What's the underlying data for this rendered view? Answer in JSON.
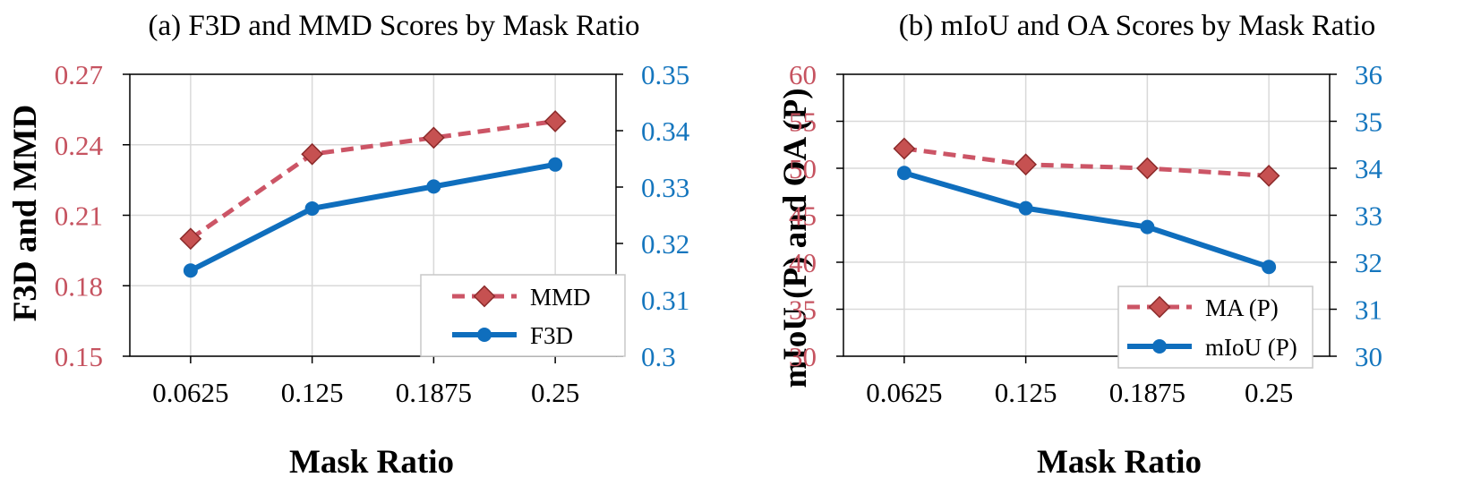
{
  "colors": {
    "left_axis": "#C65360",
    "right_axis": "#1576BE",
    "mmd_line": "#CC5566",
    "marker_fill": "#C65151",
    "marker_edge": "#8B2A2A",
    "f3d_line": "#0F6EBD",
    "grid": "#D9D9D9"
  },
  "chart_data": [
    {
      "type": "line",
      "title": "(a) F3D and MMD Scores by Mask Ratio",
      "xlabel": "Mask Ratio",
      "ylabel": "F3D and MMD",
      "x": [
        0.0625,
        0.125,
        0.1875,
        0.25
      ],
      "x_tick_labels": [
        "0.0625",
        "0.125",
        "0.1875",
        "0.25"
      ],
      "xlim": [
        0.03125,
        0.28125
      ],
      "ylim_left": [
        0.15,
        0.27
      ],
      "yticks_left": [
        "0.15",
        "0.18",
        "0.21",
        "0.24",
        "0.27"
      ],
      "ylim_right": [
        0.3,
        0.35
      ],
      "yticks_right": [
        "0.3",
        "0.31",
        "0.32",
        "0.33",
        "0.34",
        "0.35"
      ],
      "grid": true,
      "legend": "bottom-right",
      "series": [
        {
          "name": "MMD",
          "axis": "left",
          "style": "dashed",
          "marker": "diamond",
          "values": [
            0.2,
            0.236,
            0.243,
            0.25
          ]
        },
        {
          "name": "F3D",
          "axis": "right",
          "style": "solid",
          "marker": "circle",
          "values": [
            0.3152,
            0.3262,
            0.3301,
            0.334
          ]
        }
      ]
    },
    {
      "type": "line",
      "title": "(b) mIoU and OA Scores by Mask Ratio",
      "xlabel": "Mask Ratio",
      "ylabel": "mIoU (P) and OA (P)",
      "x": [
        0.0625,
        0.125,
        0.1875,
        0.25
      ],
      "x_tick_labels": [
        "0.0625",
        "0.125",
        "0.1875",
        "0.25"
      ],
      "xlim": [
        0.03125,
        0.28125
      ],
      "ylim_left": [
        30,
        60
      ],
      "yticks_left": [
        "30",
        "35",
        "40",
        "45",
        "50",
        "55",
        "60"
      ],
      "ylim_right": [
        30,
        36
      ],
      "yticks_right": [
        "30",
        "31",
        "32",
        "33",
        "34",
        "35",
        "36"
      ],
      "grid": true,
      "legend": "bottom-right",
      "series": [
        {
          "name": "MA (P)",
          "axis": "left",
          "style": "dashed",
          "marker": "diamond",
          "values": [
            52.1,
            50.4,
            50.0,
            49.2
          ]
        },
        {
          "name": "mIoU (P)",
          "axis": "right",
          "style": "solid",
          "marker": "circle",
          "values": [
            33.9,
            33.15,
            32.75,
            31.9
          ]
        }
      ]
    }
  ]
}
